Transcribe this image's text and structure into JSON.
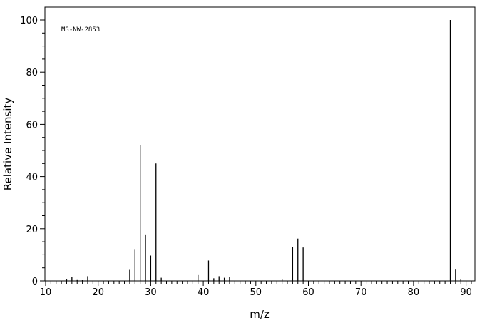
{
  "chart_data": {
    "type": "bar",
    "title": "",
    "annotation": "MS-NW-2853",
    "xlabel": "m/z",
    "ylabel": "Relative Intensity",
    "xlim": [
      10,
      91
    ],
    "ylim": [
      0,
      105
    ],
    "x_ticks": [
      10,
      20,
      30,
      40,
      50,
      60,
      70,
      80,
      90
    ],
    "x_tick_labels": [
      "10",
      "20",
      "30",
      "40",
      "50",
      "60",
      "70",
      "80",
      "90"
    ],
    "y_ticks": [
      0,
      20,
      40,
      60,
      80,
      100
    ],
    "y_tick_labels": [
      "0",
      "20",
      "40",
      "60",
      "80",
      "100"
    ],
    "grid": false,
    "series": [
      {
        "x": [
          14,
          15,
          16,
          17,
          18,
          26,
          27,
          28,
          29,
          30,
          31,
          32,
          39,
          41,
          42,
          43,
          44,
          45,
          55,
          57,
          58,
          59,
          87,
          88,
          89
        ],
        "values": [
          0.8,
          1.5,
          0.6,
          0.5,
          1.8,
          4.5,
          12.2,
          52,
          17.8,
          9.7,
          45,
          1.2,
          2.5,
          7.8,
          1.0,
          1.8,
          1.2,
          1.5,
          0.8,
          13,
          16.2,
          12.8,
          100,
          4.6,
          0.8
        ],
        "color": "#000000"
      }
    ]
  }
}
